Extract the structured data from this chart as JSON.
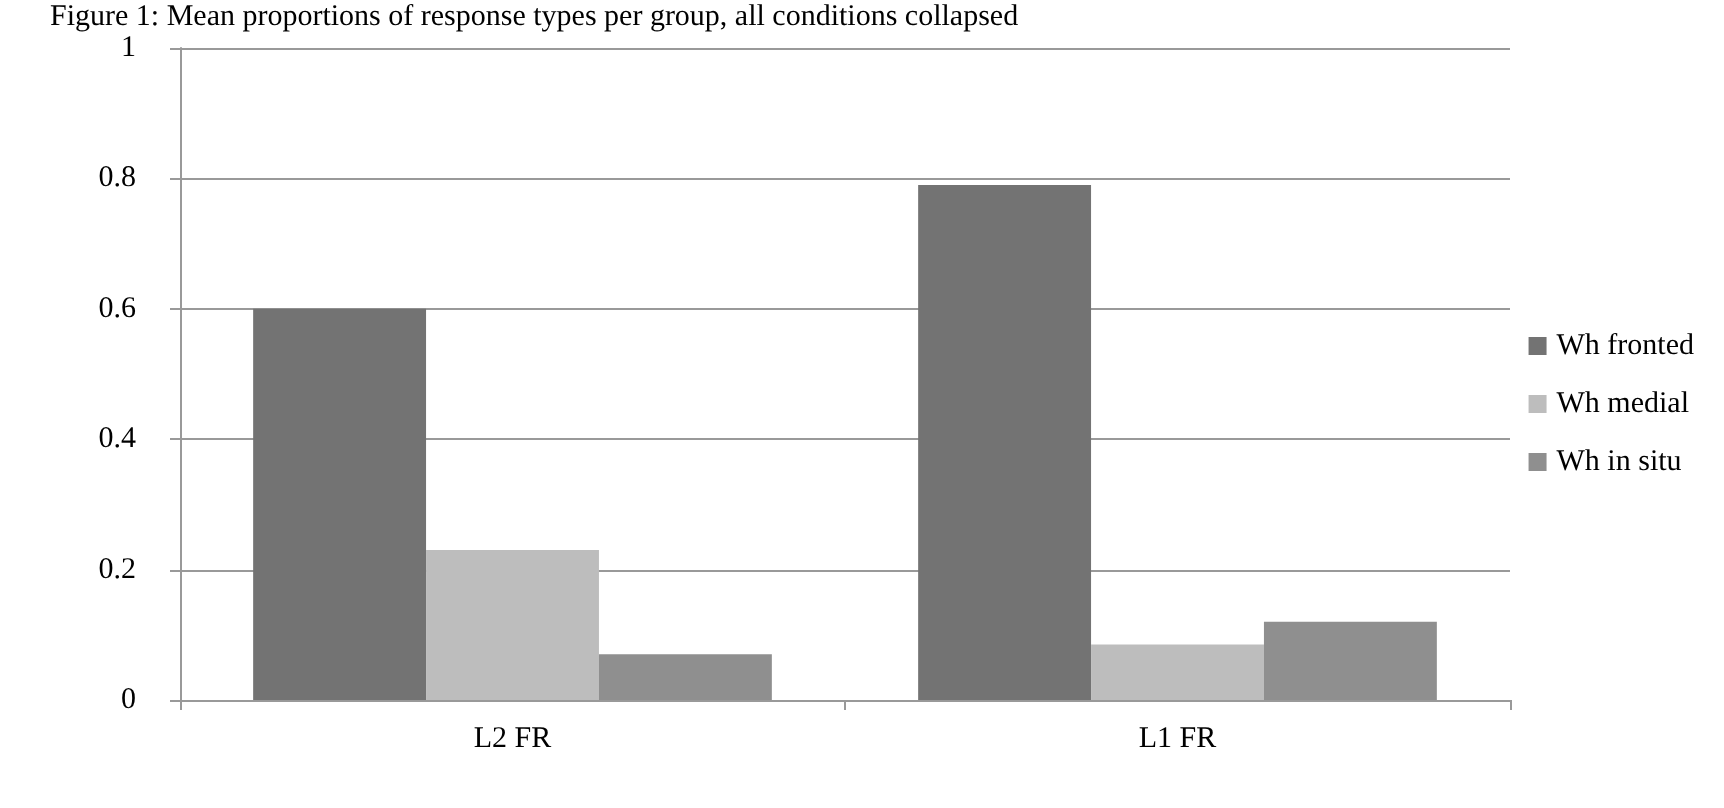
{
  "chart_data": {
    "type": "bar",
    "title": "Figure 1: Mean proportions of response types per group, all conditions collapsed",
    "categories": [
      "L2 FR",
      "L1 FR"
    ],
    "series": [
      {
        "name": "Wh fronted",
        "color": "#737373",
        "values": [
          0.6,
          0.79
        ]
      },
      {
        "name": "Wh medial",
        "color": "#bdbdbd",
        "values": [
          0.23,
          0.085
        ]
      },
      {
        "name": "Wh in situ",
        "color": "#8f8f8f",
        "values": [
          0.07,
          0.12
        ]
      }
    ],
    "ylim": [
      0,
      1
    ],
    "yticks": [
      0,
      0.2,
      0.4,
      0.6,
      0.8,
      1
    ],
    "grid": "y",
    "legend": "right"
  }
}
